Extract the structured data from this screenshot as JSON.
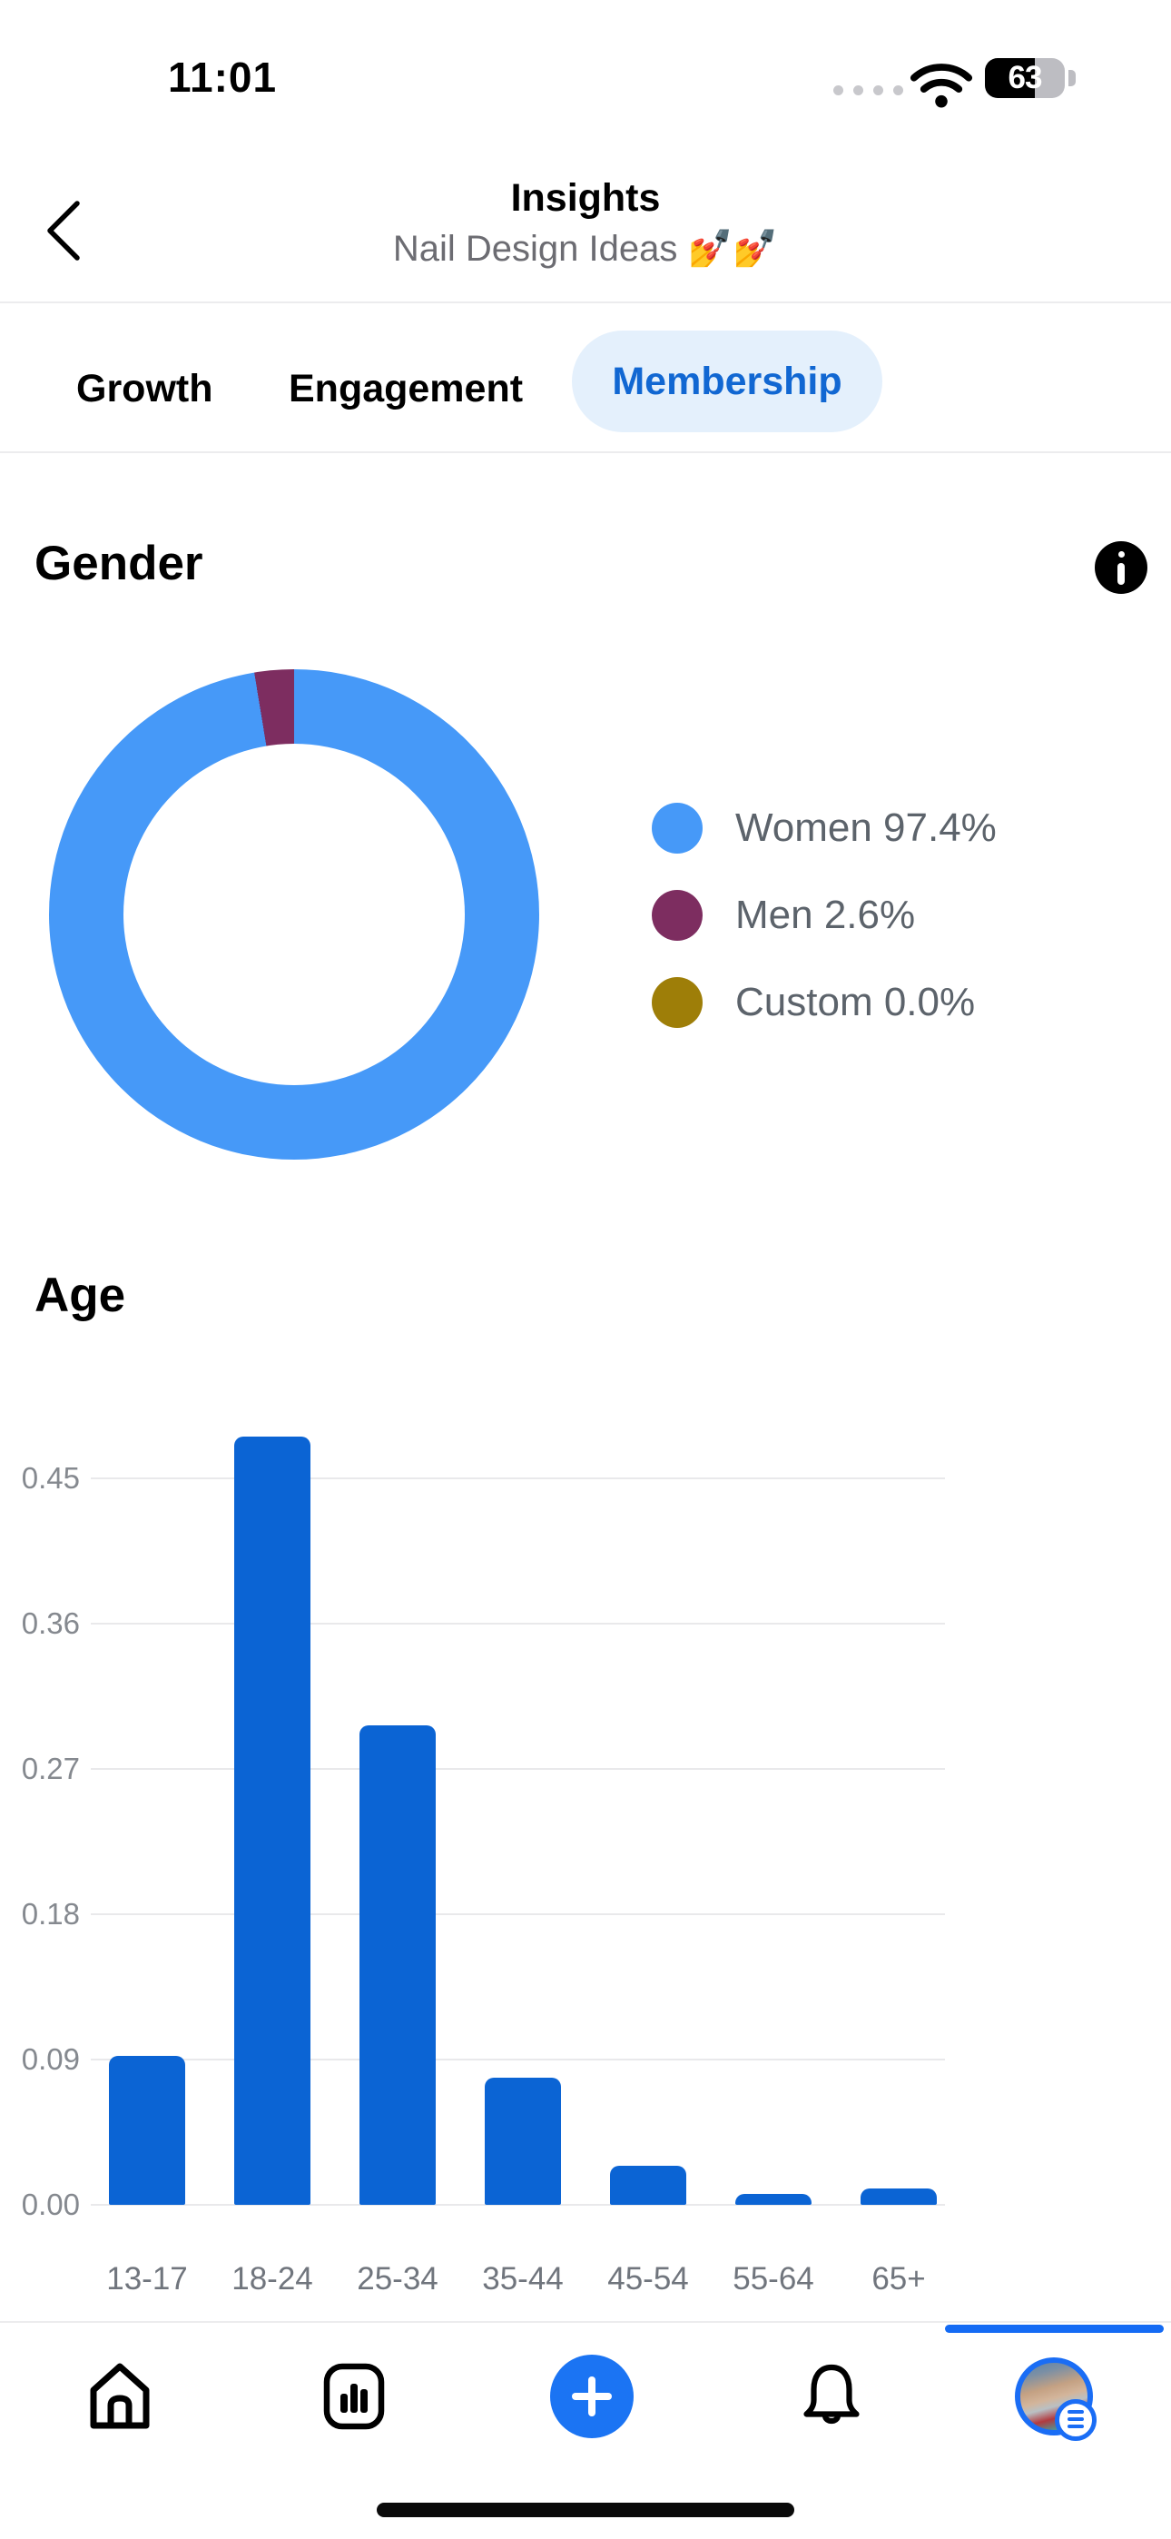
{
  "status_bar": {
    "time": "11:01",
    "battery_percent": "63"
  },
  "header": {
    "title": "Insights",
    "subtitle": "Nail Design Ideas 💅💅"
  },
  "tabs": [
    {
      "label": "Growth",
      "active": false
    },
    {
      "label": "Engagement",
      "active": false
    },
    {
      "label": "Membership",
      "active": true
    }
  ],
  "gender_section": {
    "title": "Gender"
  },
  "age_section": {
    "title": "Age"
  },
  "chart_data": [
    {
      "type": "pie",
      "title": "Gender",
      "donut": true,
      "labels": [
        "Women",
        "Men",
        "Custom"
      ],
      "values": [
        97.4,
        2.6,
        0.0
      ],
      "legend": [
        {
          "label": "Women 97.4%",
          "color": "#4699F8"
        },
        {
          "label": "Men 2.6%",
          "color": "#7D2D60"
        },
        {
          "label": "Custom 0.0%",
          "color": "#9E7E08"
        }
      ],
      "legend_position": "right",
      "start_angle": "top"
    },
    {
      "type": "bar",
      "title": "Age",
      "categories": [
        "13-17",
        "18-24",
        "25-34",
        "35-44",
        "45-54",
        "55-64",
        "65+"
      ],
      "values": [
        0.092,
        0.476,
        0.297,
        0.079,
        0.024,
        0.007,
        0.01
      ],
      "bar_color": "#0B64D4",
      "grid": true,
      "ylim": [
        0,
        0.5
      ],
      "yticks": [
        0,
        0.09,
        0.18,
        0.27,
        0.36,
        0.45
      ],
      "ytick_labels": [
        "0.00",
        "0.09",
        "0.18",
        "0.27",
        "0.36",
        "0.45"
      ],
      "xlabel": "",
      "ylabel": ""
    }
  ],
  "colors": {
    "accent_blue": "#1167D2",
    "pill_bg": "#E4F0FC",
    "nav_plus": "#1B74F3",
    "scrollbar": "#146BF4"
  },
  "bottom_nav": {
    "icons": [
      "home-icon",
      "dashboard-icon",
      "plus-icon",
      "bell-icon",
      "avatar"
    ]
  }
}
